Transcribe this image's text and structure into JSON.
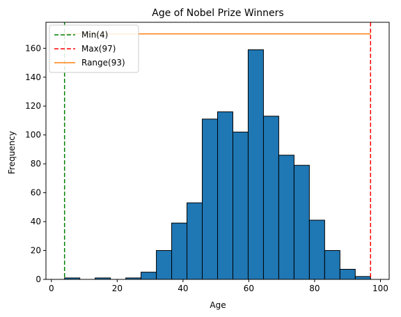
{
  "chart_data": {
    "type": "bar",
    "title": "Age of Nobel Prize Winners",
    "xlabel": "Age",
    "ylabel": "Frequency",
    "xlim": [
      -1.65,
      102.65
    ],
    "ylim": [
      0,
      178
    ],
    "xticks": [
      0,
      20,
      40,
      60,
      80,
      100
    ],
    "yticks": [
      0,
      20,
      40,
      60,
      80,
      100,
      120,
      140,
      160
    ],
    "bin_edges": [
      4,
      8.65,
      13.3,
      17.95,
      22.6,
      27.25,
      31.9,
      36.55,
      41.2,
      45.85,
      50.5,
      55.15,
      59.8,
      64.45,
      69.1,
      73.75,
      78.4,
      83.05,
      87.7,
      92.35,
      97
    ],
    "counts": [
      1,
      0,
      1,
      0,
      1,
      5,
      20,
      39,
      53,
      111,
      116,
      102,
      159,
      113,
      86,
      79,
      41,
      20,
      7,
      2
    ],
    "bar_color": "#1f77b4",
    "bar_edge_color": "#000000",
    "lines": [
      {
        "label": "Min(4)",
        "kind": "vertical",
        "x": 4,
        "color": "#008000",
        "style": "dashed"
      },
      {
        "label": "Max(97)",
        "kind": "vertical",
        "x": 97,
        "color": "#ff0000",
        "style": "dashed"
      },
      {
        "label": "Range(93)",
        "kind": "horizontal",
        "y": 170,
        "x_from": 4,
        "x_to": 97,
        "color": "#ff7f0e",
        "style": "solid"
      }
    ],
    "legend_position": "top-left",
    "grid": false
  }
}
